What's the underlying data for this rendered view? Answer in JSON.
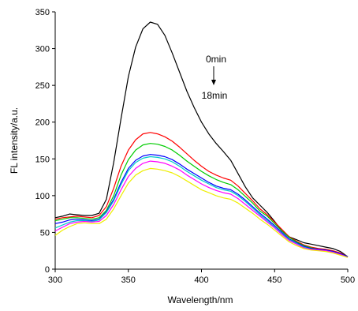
{
  "chart_data": {
    "type": "line",
    "xlabel": "Wavelength/nm",
    "ylabel": "FL intensity/a.u.",
    "xlim": [
      300,
      500
    ],
    "ylim": [
      0,
      350
    ],
    "xticks": [
      300,
      350,
      400,
      450,
      500
    ],
    "yticks": [
      0,
      50,
      100,
      150,
      200,
      250,
      300,
      350
    ],
    "grid": false,
    "annotations": {
      "start": "0min",
      "end": "18min"
    },
    "x": [
      300,
      305,
      310,
      315,
      320,
      325,
      330,
      335,
      340,
      345,
      350,
      355,
      360,
      365,
      370,
      375,
      380,
      385,
      390,
      395,
      400,
      405,
      410,
      415,
      420,
      425,
      430,
      435,
      440,
      445,
      450,
      455,
      460,
      465,
      470,
      475,
      480,
      485,
      490,
      495,
      500
    ],
    "series": [
      {
        "color": "#000000",
        "values": [
          70,
          72,
          75,
          74,
          73,
          73,
          76,
          95,
          145,
          205,
          262,
          302,
          327,
          336,
          333,
          318,
          294,
          268,
          242,
          220,
          200,
          184,
          171,
          160,
          148,
          130,
          112,
          97,
          87,
          77,
          65,
          52,
          44,
          40,
          36,
          34,
          32,
          30,
          28,
          24,
          17
        ]
      },
      {
        "color": "#ff0000",
        "values": [
          68,
          70,
          71,
          72,
          71,
          70,
          73,
          85,
          110,
          140,
          162,
          176,
          184,
          186,
          184,
          180,
          174,
          166,
          157,
          148,
          140,
          133,
          128,
          124,
          121,
          113,
          103,
          93,
          82,
          74,
          64,
          54,
          44,
          38,
          33,
          30,
          28,
          27,
          25,
          22,
          17
        ]
      },
      {
        "color": "#00cc00",
        "values": [
          66,
          68,
          70,
          70,
          69,
          68,
          70,
          80,
          100,
          128,
          149,
          162,
          169,
          171,
          170,
          167,
          162,
          155,
          147,
          140,
          133,
          127,
          122,
          118,
          115,
          108,
          99,
          90,
          79,
          72,
          62,
          52,
          43,
          37,
          32,
          29,
          27,
          26,
          24,
          21,
          17
        ]
      },
      {
        "color": "#0000ff",
        "values": [
          62,
          64,
          67,
          68,
          67,
          66,
          68,
          78,
          95,
          118,
          137,
          148,
          154,
          156,
          155,
          153,
          149,
          143,
          136,
          130,
          124,
          118,
          113,
          110,
          108,
          102,
          94,
          85,
          76,
          68,
          59,
          50,
          41,
          36,
          31,
          28,
          27,
          26,
          24,
          21,
          17
        ]
      },
      {
        "color": "#00cccc",
        "values": [
          56,
          60,
          64,
          66,
          66,
          65,
          67,
          77,
          93,
          115,
          134,
          145,
          151,
          153,
          152,
          150,
          146,
          140,
          133,
          127,
          121,
          116,
          111,
          108,
          106,
          100,
          92,
          83,
          74,
          66,
          57,
          48,
          40,
          35,
          30,
          27,
          26,
          25,
          23,
          20,
          16
        ]
      },
      {
        "color": "#ff00ff",
        "values": [
          52,
          57,
          62,
          64,
          65,
          64,
          65,
          73,
          88,
          108,
          126,
          137,
          144,
          147,
          146,
          144,
          140,
          135,
          128,
          122,
          116,
          111,
          107,
          104,
          102,
          96,
          88,
          80,
          72,
          64,
          56,
          47,
          39,
          34,
          29,
          27,
          26,
          25,
          23,
          20,
          16
        ]
      },
      {
        "color": "#eeee00",
        "values": [
          46,
          53,
          58,
          62,
          63,
          62,
          62,
          68,
          82,
          100,
          117,
          128,
          134,
          137,
          136,
          134,
          131,
          126,
          120,
          114,
          108,
          104,
          100,
          97,
          95,
          90,
          83,
          76,
          68,
          61,
          53,
          45,
          37,
          32,
          28,
          26,
          25,
          24,
          22,
          19,
          16
        ]
      }
    ]
  }
}
